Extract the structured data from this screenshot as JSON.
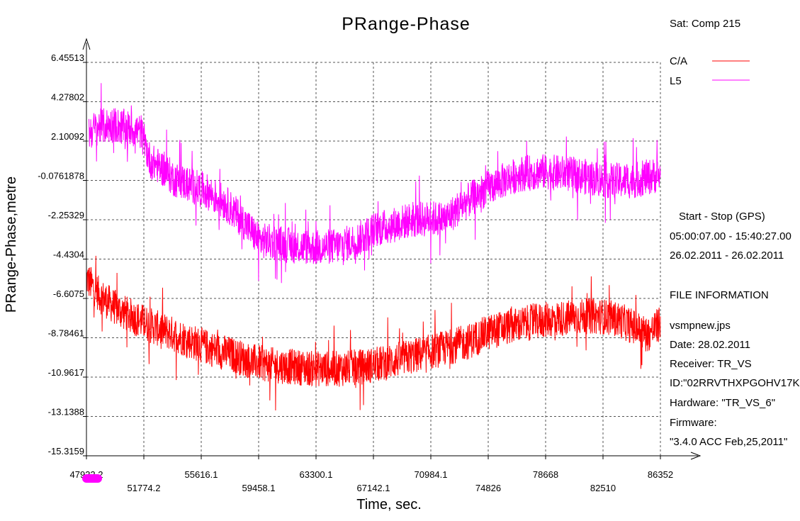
{
  "chart_data": {
    "type": "line",
    "title": "PRange-Phase",
    "xlabel": "Time, sec.",
    "ylabel": "PRange-Phase,metre",
    "xlim": [
      47932.2,
      86352
    ],
    "ylim": [
      -15.3159,
      6.45513
    ],
    "x_ticks": [
      "47932.2",
      "51774.2",
      "55616.1",
      "59458.1",
      "63300.1",
      "67142.1",
      "70984.1",
      "74826",
      "78668",
      "82510",
      "86352"
    ],
    "y_ticks": [
      "6.45513",
      "4.27802",
      "2.10092",
      "-0.0761878",
      "-2.25329",
      "-4.4304",
      "-6.6075",
      "-8.78461",
      "-10.9617",
      "-13.1388",
      "-15.3159"
    ],
    "grid": true,
    "legend_position": "top-right",
    "series": [
      {
        "name": "C/A",
        "color": "#ff0000",
        "x": [
          47932,
          48900,
          50000,
          51200,
          52500,
          53800,
          55000,
          56300,
          57600,
          59000,
          60400,
          61800,
          63300,
          64800,
          66300,
          67800,
          69300,
          70800,
          72200,
          73500,
          74800,
          76000,
          77300,
          78600,
          79900,
          81200,
          82500,
          83600,
          84600,
          85500,
          86352
        ],
        "y": [
          -5.5,
          -6.5,
          -7.2,
          -7.7,
          -8.2,
          -8.6,
          -9.0,
          -9.4,
          -9.7,
          -10.1,
          -10.3,
          -10.4,
          -10.5,
          -10.5,
          -10.4,
          -10.2,
          -9.9,
          -9.6,
          -9.3,
          -9.0,
          -8.5,
          -8.2,
          -8.0,
          -7.8,
          -7.7,
          -7.6,
          -7.6,
          -7.8,
          -8.2,
          -8.6,
          -8.0
        ],
        "noise": 1.0
      },
      {
        "name": "L5",
        "color": "#ff00ff",
        "x": [
          48100,
          48800,
          49800,
          50800,
          51600,
          52200,
          53000,
          53800,
          54800,
          56000,
          57200,
          58500,
          59500,
          60500,
          61800,
          63300,
          64800,
          66000,
          67200,
          68200,
          69500,
          70800,
          72000,
          73300,
          74600,
          75800,
          77000,
          78500,
          80000,
          81500,
          83000,
          84500,
          86000,
          86352
        ],
        "y": [
          2.6,
          2.9,
          3.0,
          2.8,
          2.6,
          1.0,
          0.6,
          0.0,
          -0.3,
          -0.7,
          -1.3,
          -2.4,
          -3.4,
          -3.5,
          -3.7,
          -3.8,
          -3.7,
          -3.4,
          -2.8,
          -2.6,
          -2.3,
          -2.2,
          -2.2,
          -1.3,
          -0.6,
          -0.1,
          0.3,
          0.4,
          0.3,
          0.1,
          -0.1,
          -0.1,
          0.2,
          0.1
        ],
        "noise": 1.0
      }
    ]
  },
  "legend": {
    "satellite": "Sat: Comp  215",
    "ca_label": "C/A",
    "l5_label": "L5"
  },
  "info": {
    "start_stop_title": "Start  -  Stop  (GPS)",
    "time_range": "05:00:07.00 - 15:40:27.00",
    "date_range": "26.02.2011 - 26.02.2011",
    "file_info_title": "FILE INFORMATION",
    "file_name": "vsmpnew.jps",
    "date": "Date: 28.02.2011",
    "receiver": "Receiver: TR_VS",
    "id": "ID:\"02RRVTHXPGOHV17K",
    "hardware": "Hardware: \"TR_VS_6\"",
    "firmware_label": "Firmware:",
    "firmware_value": "\"3.4.0 ACC Feb,25,2011\""
  }
}
